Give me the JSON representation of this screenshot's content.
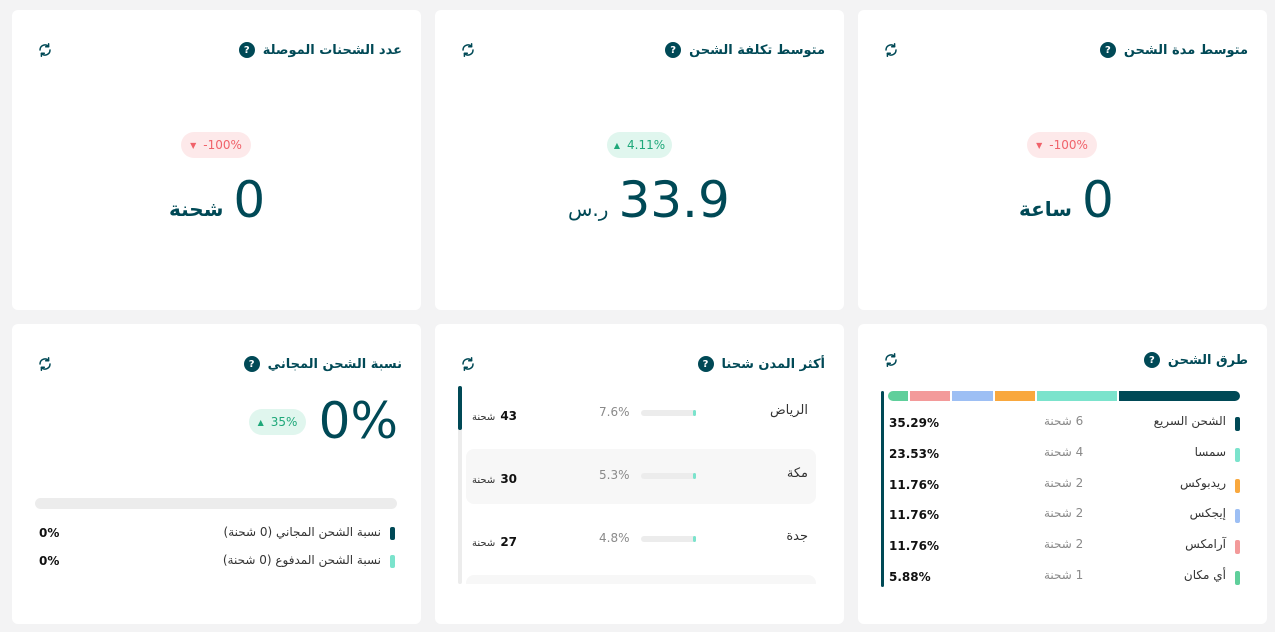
{
  "cards": {
    "delivered": {
      "title": "عدد الشحنات الموصلة",
      "help": "?",
      "badge": "-100%",
      "value": "0",
      "unit": "شحنة"
    },
    "avg_cost": {
      "title": "متوسط تكلفة الشحن",
      "help": "?",
      "badge": "4.11%",
      "value": "33.9",
      "unit": "ر.س"
    },
    "avg_duration": {
      "title": "متوسط مدة الشحن",
      "help": "?",
      "badge": "-100%",
      "value": "0",
      "unit": "ساعة"
    },
    "free_ratio": {
      "title": "نسبة الشحن المجاني",
      "help": "?",
      "badge": "35%",
      "value": "0%",
      "progress": 0,
      "legend": [
        {
          "label": "نسبة الشحن المجاني (0 شحنة)",
          "pct": "0%",
          "color": "#004956"
        },
        {
          "label": "نسبة الشحن المدفوع (0 شحنة)",
          "pct": "0%",
          "color": "#7be3cc"
        }
      ]
    },
    "top_cities": {
      "title": "أكثر المدن شحنا",
      "help": "?",
      "rows": [
        {
          "city": "الرياض",
          "pct": "7.6%",
          "count": "43",
          "unit": "شحنة",
          "fraction": 0.076
        },
        {
          "city": "مكة",
          "pct": "5.3%",
          "count": "30",
          "unit": "شحنة",
          "fraction": 0.053
        },
        {
          "city": "جدة",
          "pct": "4.8%",
          "count": "27",
          "unit": "شحنة",
          "fraction": 0.048
        }
      ]
    },
    "methods": {
      "title": "طرق الشحن",
      "help": "?",
      "rows": [
        {
          "name": "الشحن السريع",
          "count": "6 شحنة",
          "pct": "35.29%",
          "color": "#004956",
          "fraction": 0.3529
        },
        {
          "name": "سمسا",
          "count": "4 شحنة",
          "pct": "23.53%",
          "color": "#7be3cc",
          "fraction": 0.2353
        },
        {
          "name": "ريدبوكس",
          "count": "2 شحنة",
          "pct": "11.76%",
          "color": "#f9a83e",
          "fraction": 0.1176
        },
        {
          "name": "إيجكس",
          "count": "2 شحنة",
          "pct": "11.76%",
          "color": "#9dbff4",
          "fraction": 0.1176
        },
        {
          "name": "آرامكس",
          "count": "2 شحنة",
          "pct": "11.76%",
          "color": "#f39a9a",
          "fraction": 0.1176
        },
        {
          "name": "أي مكان",
          "count": "1 شحنة",
          "pct": "5.88%",
          "color": "#5fcf9b",
          "fraction": 0.0588
        }
      ]
    }
  },
  "icons": {
    "refresh": "refresh-icon",
    "help": "help-icon",
    "down": "triangle-down-icon",
    "up": "triangle-up-icon"
  }
}
